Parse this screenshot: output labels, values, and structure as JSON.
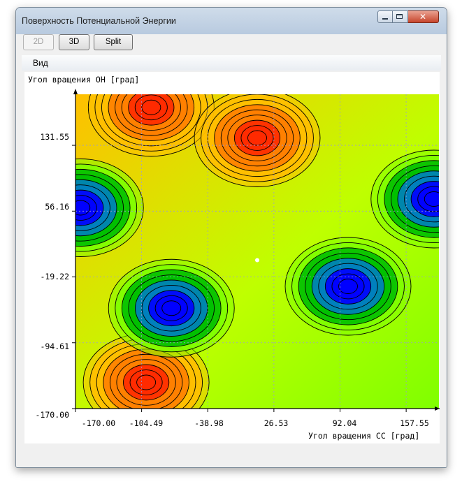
{
  "window": {
    "title": "Поверхность Потенциальной Энергии",
    "controls": {
      "close_glyph": "✕"
    }
  },
  "toolbar": {
    "buttons": [
      {
        "label": "2D",
        "enabled": false
      },
      {
        "label": "3D",
        "enabled": true
      },
      {
        "label": "Split",
        "enabled": true
      }
    ]
  },
  "menu": {
    "items": [
      {
        "label": "Вид"
      }
    ]
  },
  "chart_data": {
    "type": "heatmap",
    "subtype": "filled contour plot with contour lines",
    "ylabel": "Угол вращения OH [град]",
    "xlabel": "Угол вращения CC [град]",
    "x_ticks": [
      "-170.00",
      "-104.49",
      "-38.98",
      "26.53",
      "92.04",
      "157.55"
    ],
    "y_ticks": [
      "131.55",
      "56.16",
      "-19.22",
      "-94.61",
      "-170.00"
    ],
    "xlim": [
      -170.0,
      190.0
    ],
    "ylim": [
      -170.0,
      190.0
    ],
    "grid": true,
    "colormap": [
      "#0000ff",
      "#007fbf",
      "#00bf00",
      "#7fff00",
      "#ffff00",
      "#ffbf00",
      "#ff7f00",
      "#ff2a00"
    ],
    "features": [
      {
        "kind": "high",
        "x": -95,
        "y": 175
      },
      {
        "kind": "high",
        "x": 10,
        "y": 140
      },
      {
        "kind": "high",
        "x": -100,
        "y": -140
      },
      {
        "kind": "low",
        "x": -165,
        "y": 60
      },
      {
        "kind": "low",
        "x": -75,
        "y": -55
      },
      {
        "kind": "low",
        "x": 100,
        "y": -30
      },
      {
        "kind": "low",
        "x": 185,
        "y": 70
      }
    ],
    "marker": {
      "x": 10,
      "y": 0,
      "color": "#ffffff"
    }
  }
}
